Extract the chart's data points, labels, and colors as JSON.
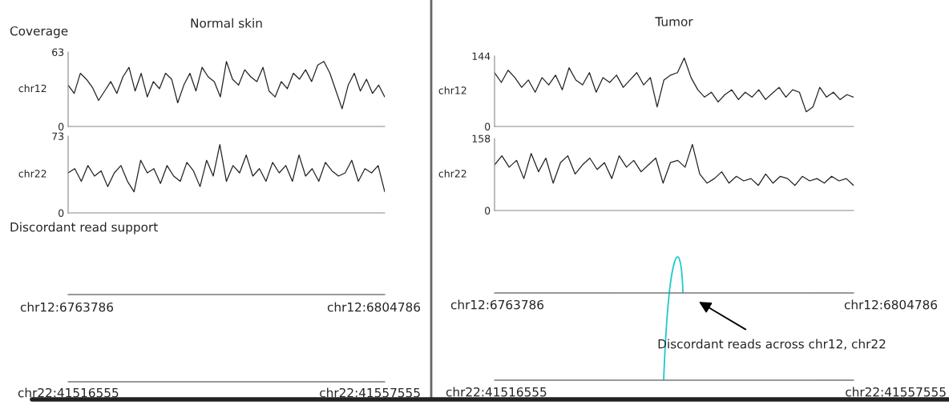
{
  "chart_data": [
    {
      "type": "line",
      "title": "Normal skin",
      "annotations": [
        "Coverage"
      ],
      "ylabel": "chr12",
      "color": "#222222",
      "ylim": [
        0,
        63
      ],
      "yticks": [
        0,
        63
      ],
      "tick_labels": "y",
      "categories": [
        null,
        null,
        null,
        null,
        null,
        null,
        null,
        null,
        null,
        null,
        null,
        null,
        null,
        null,
        null,
        null,
        null,
        null,
        null,
        null,
        null,
        null,
        null,
        null,
        null,
        null,
        null,
        null,
        null,
        null,
        null,
        null,
        null,
        null,
        null,
        null,
        null,
        null,
        null,
        null,
        null,
        null,
        null,
        null,
        null,
        null,
        null,
        null,
        null,
        null,
        null,
        null,
        null
      ],
      "values": [
        35,
        28,
        45,
        40,
        33,
        22,
        30,
        38,
        28,
        42,
        50,
        30,
        45,
        25,
        38,
        32,
        45,
        40,
        20,
        35,
        45,
        30,
        50,
        42,
        38,
        25,
        55,
        40,
        35,
        48,
        42,
        38,
        50,
        30,
        25,
        38,
        32,
        45,
        40,
        48,
        38,
        52,
        55,
        45,
        30,
        15,
        35,
        45,
        30,
        40,
        28,
        35,
        25
      ]
    },
    {
      "type": "line",
      "ylabel": "chr22",
      "color": "#222222",
      "ylim": [
        0,
        73
      ],
      "yticks": [
        0,
        73
      ],
      "tick_labels": "y",
      "categories": [
        null,
        null,
        null,
        null,
        null,
        null,
        null,
        null,
        null,
        null,
        null,
        null,
        null,
        null,
        null,
        null,
        null,
        null,
        null,
        null,
        null,
        null,
        null,
        null,
        null,
        null,
        null,
        null,
        null,
        null,
        null,
        null,
        null,
        null,
        null,
        null,
        null,
        null,
        null,
        null,
        null,
        null,
        null,
        null,
        null,
        null,
        null,
        null,
        null
      ],
      "values": [
        38,
        42,
        30,
        45,
        35,
        40,
        25,
        38,
        45,
        30,
        20,
        50,
        38,
        42,
        28,
        45,
        35,
        30,
        48,
        40,
        25,
        50,
        35,
        65,
        30,
        45,
        38,
        55,
        35,
        42,
        30,
        48,
        38,
        45,
        30,
        55,
        35,
        42,
        30,
        48,
        40,
        35,
        38,
        50,
        30,
        42,
        38,
        45,
        20
      ]
    },
    {
      "type": "line",
      "title": "Tumor",
      "ylabel": "chr12",
      "color": "#222222",
      "ylim": [
        0,
        144
      ],
      "yticks": [
        0,
        144
      ],
      "tick_labels": "y",
      "categories": [
        null,
        null,
        null,
        null,
        null,
        null,
        null,
        null,
        null,
        null,
        null,
        null,
        null,
        null,
        null,
        null,
        null,
        null,
        null,
        null,
        null,
        null,
        null,
        null,
        null,
        null,
        null,
        null,
        null,
        null,
        null,
        null,
        null,
        null,
        null,
        null,
        null,
        null,
        null,
        null,
        null,
        null,
        null,
        null,
        null,
        null,
        null,
        null,
        null,
        null,
        null,
        null,
        null,
        null
      ],
      "values": [
        110,
        90,
        115,
        100,
        80,
        95,
        70,
        100,
        85,
        105,
        75,
        120,
        95,
        85,
        110,
        70,
        100,
        90,
        105,
        80,
        95,
        110,
        85,
        100,
        40,
        95,
        105,
        110,
        140,
        100,
        75,
        60,
        70,
        50,
        65,
        75,
        55,
        70,
        60,
        75,
        55,
        68,
        80,
        60,
        75,
        70,
        30,
        40,
        80,
        60,
        70,
        55,
        65,
        60
      ]
    },
    {
      "type": "line",
      "ylabel": "chr22",
      "color": "#222222",
      "ylim": [
        0,
        158
      ],
      "yticks": [
        0,
        158
      ],
      "tick_labels": "y",
      "categories": [
        null,
        null,
        null,
        null,
        null,
        null,
        null,
        null,
        null,
        null,
        null,
        null,
        null,
        null,
        null,
        null,
        null,
        null,
        null,
        null,
        null,
        null,
        null,
        null,
        null,
        null,
        null,
        null,
        null,
        null,
        null,
        null,
        null,
        null,
        null,
        null,
        null,
        null,
        null,
        null,
        null,
        null,
        null,
        null,
        null,
        null,
        null,
        null,
        null,
        null
      ],
      "values": [
        100,
        120,
        95,
        110,
        70,
        125,
        85,
        115,
        60,
        105,
        120,
        80,
        100,
        115,
        90,
        105,
        70,
        120,
        95,
        110,
        85,
        100,
        115,
        60,
        105,
        110,
        95,
        145,
        80,
        60,
        70,
        85,
        60,
        75,
        65,
        70,
        55,
        80,
        60,
        75,
        70,
        55,
        75,
        65,
        70,
        60,
        75,
        65,
        70,
        55
      ]
    },
    {
      "type": "other",
      "title": "Discordant read support",
      "annotations": [
        "chr12:6763786",
        "chr12:6804786",
        "chr22:41516555",
        "chr22:41557555"
      ]
    },
    {
      "type": "other",
      "annotations": [
        "chr12:6763786",
        "chr12:6804786",
        "chr22:41516555",
        "chr22:41557555",
        "Discordant reads across chr12, chr22"
      ]
    }
  ]
}
